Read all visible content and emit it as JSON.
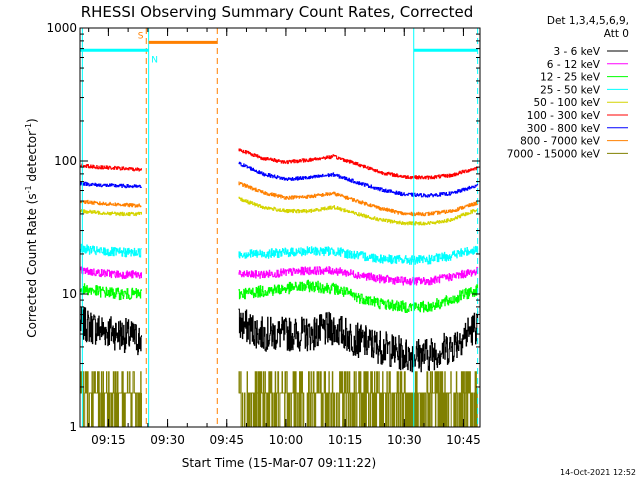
{
  "chart_data": {
    "type": "line",
    "title": "RHESSI Observing Summary Count Rates, Corrected",
    "xlabel": "Start Time (15-Mar-07 09:11:22)",
    "ylabel_main": "Corrected Count Rate (s",
    "ylabel_sup1": "-1",
    "ylabel_mid": " detector",
    "ylabel_sup2": "-1",
    "ylabel_end": ")",
    "yscale": "log",
    "xlim": [
      9.13,
      10.82
    ],
    "ylim": [
      1,
      1000
    ],
    "x_ticks": [
      {
        "value": 9.25,
        "label": "09:15"
      },
      {
        "value": 9.5,
        "label": "09:30"
      },
      {
        "value": 9.75,
        "label": "09:45"
      },
      {
        "value": 10.0,
        "label": "10:00"
      },
      {
        "value": 10.25,
        "label": "10:15"
      },
      {
        "value": 10.5,
        "label": "10:30"
      },
      {
        "value": 10.75,
        "label": "10:45"
      }
    ],
    "y_ticks": [
      {
        "value": 1,
        "label": "1"
      },
      {
        "value": 10,
        "label": "10"
      },
      {
        "value": 100,
        "label": "100"
      },
      {
        "value": 1000,
        "label": "1000"
      }
    ],
    "legend_header": [
      "Det 1,3,4,5,6,9,",
      "Att 0"
    ],
    "data_gaps": [
      [
        9.39,
        9.8
      ]
    ],
    "series": [
      {
        "name": "3 - 6 keV",
        "color": "#000000",
        "noise": 0.3,
        "x": [
          9.13,
          9.2,
          9.3,
          9.39,
          9.8,
          9.9,
          10.0,
          10.1,
          10.2,
          10.3,
          10.4,
          10.5,
          10.6,
          10.7,
          10.82
        ],
        "values": [
          6,
          5.5,
          5,
          4.5,
          6,
          5,
          5,
          5,
          5.5,
          4.5,
          4,
          3.5,
          3.5,
          4,
          6
        ]
      },
      {
        "name": "6 - 12 keV",
        "color": "#ff00ff",
        "noise": 0.07,
        "x": [
          9.13,
          9.2,
          9.3,
          9.39,
          9.8,
          9.9,
          10.0,
          10.1,
          10.2,
          10.3,
          10.4,
          10.5,
          10.6,
          10.7,
          10.82
        ],
        "values": [
          15,
          14.5,
          14,
          14,
          14,
          14,
          14.5,
          15,
          15,
          14,
          13,
          12.5,
          12.5,
          13.5,
          15
        ]
      },
      {
        "name": "12 - 25 keV",
        "color": "#00ff00",
        "noise": 0.1,
        "x": [
          9.13,
          9.2,
          9.3,
          9.39,
          9.8,
          9.9,
          10.0,
          10.1,
          10.2,
          10.3,
          10.4,
          10.5,
          10.6,
          10.7,
          10.82
        ],
        "values": [
          11,
          10.5,
          10,
          10,
          10,
          10.5,
          11,
          11.5,
          11,
          9.5,
          8.5,
          8,
          8,
          9,
          11
        ]
      },
      {
        "name": "25 - 50 keV",
        "color": "#00ffff",
        "noise": 0.08,
        "x": [
          9.13,
          9.2,
          9.3,
          9.39,
          9.8,
          9.9,
          10.0,
          10.1,
          10.2,
          10.3,
          10.4,
          10.5,
          10.6,
          10.7,
          10.82
        ],
        "values": [
          22,
          21,
          20.5,
          20.5,
          20,
          20,
          20.5,
          21,
          21,
          19.5,
          18.5,
          18,
          18,
          19.5,
          22
        ]
      },
      {
        "name": "50 - 100 keV",
        "color": "#d4d400",
        "noise": 0.03,
        "x": [
          9.13,
          9.2,
          9.3,
          9.39,
          9.8,
          9.9,
          10.0,
          10.1,
          10.2,
          10.3,
          10.4,
          10.5,
          10.6,
          10.7,
          10.82
        ],
        "values": [
          42,
          41,
          40,
          40,
          52,
          45,
          42,
          42,
          45,
          40,
          36,
          34,
          34,
          36,
          44
        ]
      },
      {
        "name": "100 - 300 keV",
        "color": "#ff0000",
        "noise": 0.03,
        "x": [
          9.13,
          9.2,
          9.3,
          9.39,
          9.8,
          9.9,
          10.0,
          10.1,
          10.2,
          10.3,
          10.4,
          10.5,
          10.6,
          10.7,
          10.82
        ],
        "values": [
          93,
          90,
          88,
          86,
          122,
          105,
          98,
          102,
          108,
          95,
          82,
          76,
          75,
          78,
          90
        ]
      },
      {
        "name": "300 - 800 keV",
        "color": "#0000ff",
        "noise": 0.03,
        "x": [
          9.13,
          9.2,
          9.3,
          9.39,
          9.8,
          9.9,
          10.0,
          10.1,
          10.2,
          10.3,
          10.4,
          10.5,
          10.6,
          10.7,
          10.82
        ],
        "values": [
          68,
          66,
          65,
          64,
          96,
          80,
          73,
          75,
          79,
          69,
          61,
          56,
          55,
          57,
          66
        ]
      },
      {
        "name": "800 - 7000 keV",
        "color": "#ff8000",
        "noise": 0.03,
        "x": [
          9.13,
          9.2,
          9.3,
          9.39,
          9.8,
          9.9,
          10.0,
          10.1,
          10.2,
          10.3,
          10.4,
          10.5,
          10.6,
          10.7,
          10.82
        ],
        "values": [
          50,
          48,
          47,
          46,
          68,
          58,
          53,
          54,
          57,
          50,
          44,
          40,
          40,
          42,
          49
        ]
      },
      {
        "name": "7000 - 15000 keV",
        "color": "#808000",
        "noise": 0.4,
        "x": [
          9.13,
          9.3,
          9.39,
          9.8,
          10.0,
          10.2,
          10.4,
          10.6,
          10.82
        ],
        "values": [
          1.8,
          1.8,
          1.8,
          1.8,
          1.8,
          1.8,
          1.8,
          1.8,
          1.8
        ]
      }
    ],
    "flag_bars": [
      {
        "label": "",
        "color": "#00ffff",
        "start": 9.13,
        "end": 9.42,
        "level": 680
      },
      {
        "label": "N",
        "color": "#00ffff",
        "start": 9.42,
        "end": 9.42,
        "level": 680
      },
      {
        "label": "S",
        "color": "#ff8000",
        "start": 9.42,
        "end": 9.71,
        "level": 780
      },
      {
        "label": "",
        "color": "#00ffff",
        "start": 10.54,
        "end": 10.81,
        "level": 680
      }
    ],
    "vlines": [
      {
        "x": 9.14,
        "color": "#00ffff",
        "style": "solid"
      },
      {
        "x": 9.42,
        "color": "#00ffff",
        "style": "solid"
      },
      {
        "x": 9.41,
        "color": "#ff8000",
        "style": "dashed"
      },
      {
        "x": 9.71,
        "color": "#ff8000",
        "style": "dashed"
      },
      {
        "x": 10.54,
        "color": "#00ffff",
        "style": "solid"
      },
      {
        "x": 10.81,
        "color": "#00ffff",
        "style": "dashed"
      }
    ],
    "footer_date": "14-Oct-2021 12:52"
  }
}
